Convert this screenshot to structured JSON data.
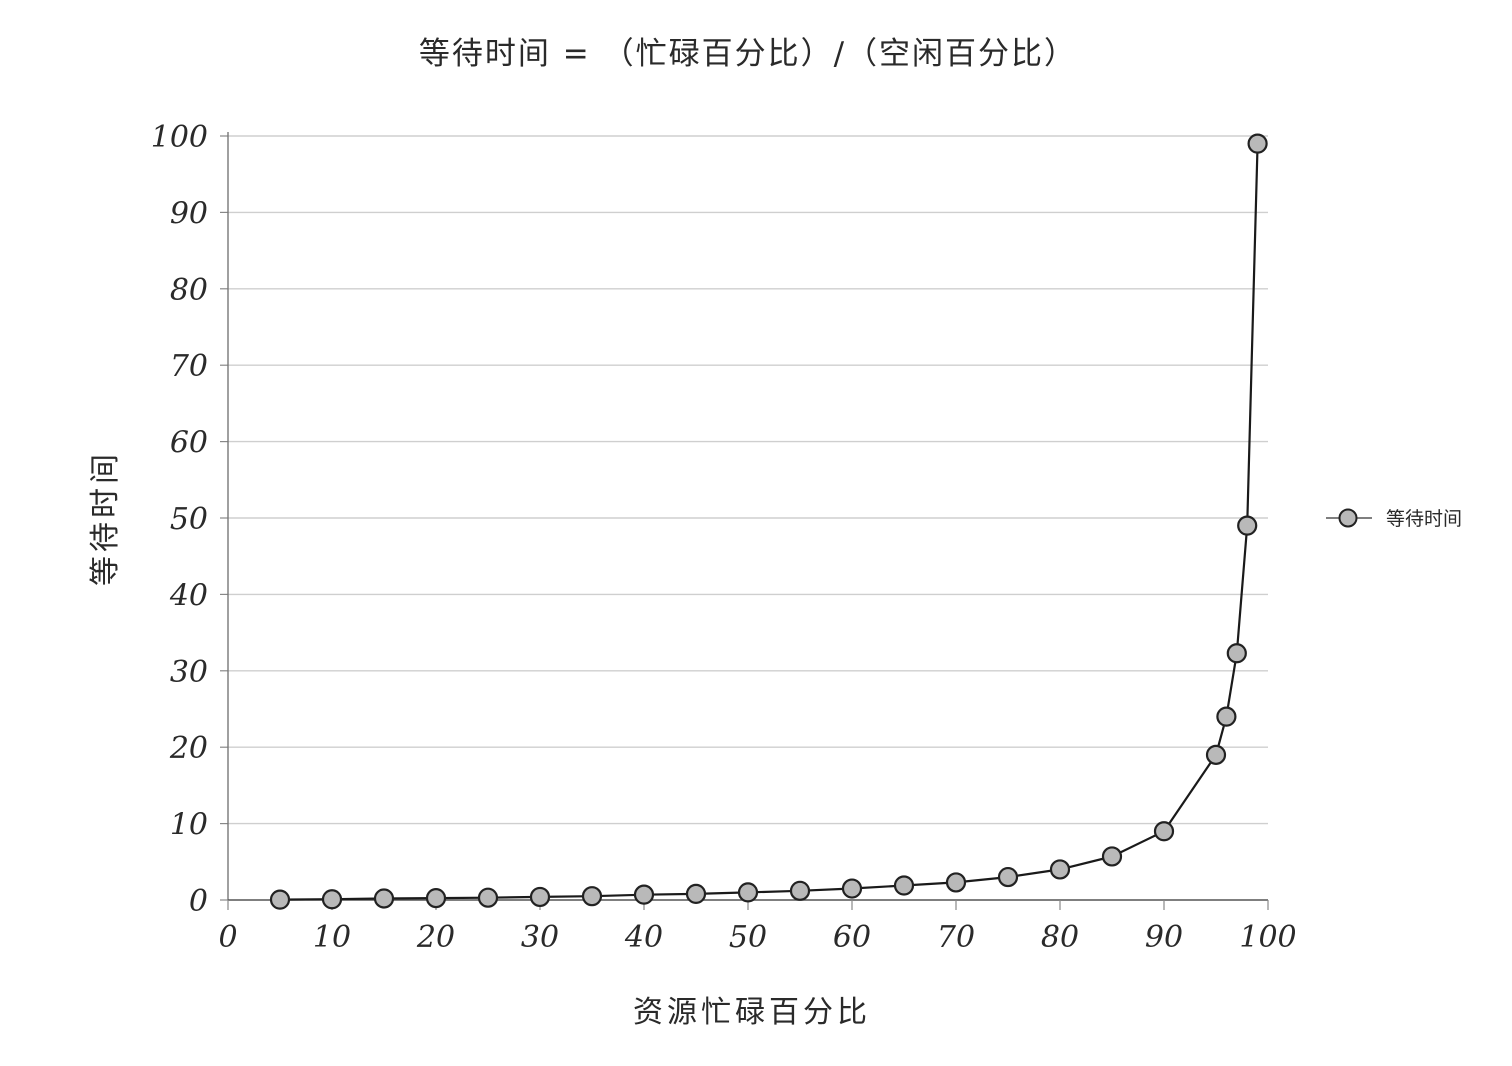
{
  "chart_data": {
    "type": "line",
    "title": "等待时间 = （忙碌百分比）/（空闲百分比）",
    "xlabel": "资源忙碌百分比",
    "ylabel": "等待时间",
    "xlim": [
      0,
      100
    ],
    "ylim": [
      0,
      100
    ],
    "x_ticks": [
      "0",
      "10",
      "20",
      "30",
      "40",
      "50",
      "60",
      "70",
      "80",
      "90",
      "100"
    ],
    "y_ticks": [
      "0",
      "10",
      "20",
      "30",
      "40",
      "50",
      "60",
      "70",
      "80",
      "90",
      "100"
    ],
    "grid": "horizontal",
    "legend_position": "right",
    "series": [
      {
        "name": "等待时间",
        "marker_color": "#b9b9b9",
        "line_color": "#1a1a1a",
        "points": [
          {
            "x": 5,
            "y": 0.05
          },
          {
            "x": 10,
            "y": 0.1
          },
          {
            "x": 15,
            "y": 0.2
          },
          {
            "x": 20,
            "y": 0.25
          },
          {
            "x": 25,
            "y": 0.3
          },
          {
            "x": 30,
            "y": 0.4
          },
          {
            "x": 35,
            "y": 0.5
          },
          {
            "x": 40,
            "y": 0.7
          },
          {
            "x": 45,
            "y": 0.8
          },
          {
            "x": 50,
            "y": 1
          },
          {
            "x": 55,
            "y": 1.2
          },
          {
            "x": 60,
            "y": 1.5
          },
          {
            "x": 65,
            "y": 1.9
          },
          {
            "x": 70,
            "y": 2.3
          },
          {
            "x": 75,
            "y": 3
          },
          {
            "x": 80,
            "y": 4
          },
          {
            "x": 85,
            "y": 5.7
          },
          {
            "x": 90,
            "y": 9
          },
          {
            "x": 95,
            "y": 19
          },
          {
            "x": 96,
            "y": 24
          },
          {
            "x": 97,
            "y": 32.3
          },
          {
            "x": 98,
            "y": 49
          },
          {
            "x": 99,
            "y": 99
          }
        ]
      }
    ]
  }
}
